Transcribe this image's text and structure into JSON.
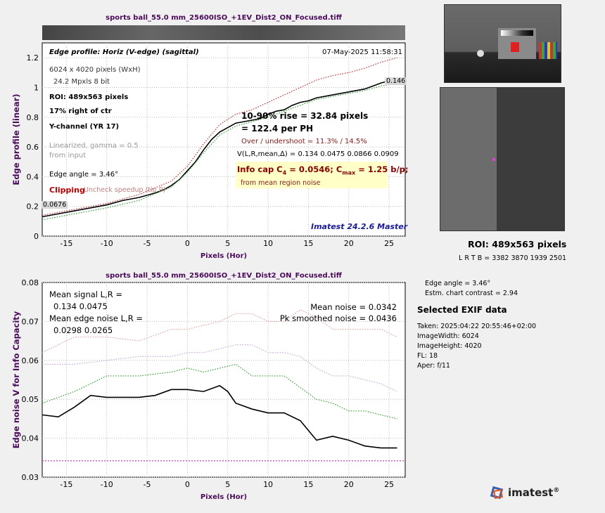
{
  "file_title": "sports ball_55.0 mm_25600ISO_+1EV_Dist2_ON_Focused.tiff",
  "top_chart": {
    "heading": "Edge profile: Horiz (V-edge) (sagittal)",
    "date": "07-May-2025 11:58:31",
    "dims": "6024 x 4020 pixels (WxH)",
    "mpxls": "24.2 Mpxls   8 bit",
    "roi": "ROI:  489x563 pixels",
    "offset": "17% right of ctr",
    "channel": "Y-channel  (YR 17)",
    "linearized": "Linearized, gamma = 0.5",
    "from_input": "from input",
    "edge_angle": "Edge angle = 3.46°",
    "clipping": "Clipping",
    "clipping_note": "Uncheck speedup (tip 9)",
    "rise": "10-90% rise = 32.84 pixels",
    "per_ph": "=  122.4 per PH",
    "overshoot": "Over / undershoot = 11.3% / 14.5%",
    "vlr": "V(L,R,mean,∆) = 0.134  0.0475  0.0866  0.0909",
    "infocap_a": "Info cap C",
    "infocap_sub4": "4",
    "infocap_b": " = 0.0546;  C",
    "infocap_submax": "max",
    "infocap_c": " = 1.25 b/p;",
    "infocap_note": "from mean region noise",
    "version": "Imatest 24.2.6 Master",
    "label_low": "0.0676",
    "label_high": "0.146"
  },
  "bottom_chart": {
    "mean_signal": "Mean signal L,R =",
    "mean_signal_vals": "0.134  0.0475",
    "mean_edge_noise": "Mean edge noise L,R =",
    "mean_edge_noise_vals": "0.0298  0.0265",
    "mean_noise": "Mean noise = 0.0342",
    "pk_noise": "Pk smoothed noise = 0.0436"
  },
  "side": {
    "roi": "ROI:  489x563 pixels",
    "lrtb": "L R  T B = 3382 3870  1939 2501",
    "edge_angle": "Edge angle = 3.46°",
    "contrast": "Estm. chart contrast = 2.94",
    "exif_title": "Selected EXIF data",
    "exif": [
      "Taken: 2025:04:22 20:55:46+02:00",
      "ImageWidth:  6024",
      "ImageHeight:  4020",
      "FL:   18",
      "Aper:  f/11"
    ],
    "logo": "imatest",
    "logo_mark": "®"
  },
  "chart_data": [
    {
      "type": "line",
      "title": "sports ball_55.0 mm_25600ISO_+1EV_Dist2_ON_Focused.tiff",
      "xlabel": "Pixels (Hor)",
      "ylabel": "Edge profile (linear)",
      "xlim": [
        -18,
        27
      ],
      "ylim": [
        0,
        1.3
      ],
      "xticks": [
        -15,
        -10,
        -5,
        0,
        5,
        10,
        15,
        20,
        25
      ],
      "yticks": [
        0,
        0.2,
        0.4,
        0.6,
        0.8,
        1,
        1.2
      ],
      "grid": true,
      "series": [
        {
          "color": "#000000",
          "style": "solid",
          "x": [
            -18,
            -16,
            -14,
            -12,
            -10,
            -8,
            -6,
            -4,
            -3,
            -2,
            -1,
            0,
            1,
            2,
            3,
            4,
            5,
            6,
            7,
            8,
            9,
            10,
            11,
            12,
            13,
            14,
            15,
            16,
            18,
            20,
            22,
            24,
            26
          ],
          "y": [
            0.13,
            0.15,
            0.17,
            0.19,
            0.21,
            0.24,
            0.26,
            0.29,
            0.31,
            0.34,
            0.38,
            0.44,
            0.5,
            0.58,
            0.65,
            0.7,
            0.73,
            0.76,
            0.77,
            0.78,
            0.79,
            0.82,
            0.84,
            0.85,
            0.88,
            0.9,
            0.91,
            0.93,
            0.95,
            0.97,
            0.99,
            1.03,
            1.06
          ]
        },
        {
          "color": "#2ca02c",
          "style": "dotted",
          "x": [
            -18,
            -14,
            -10,
            -6,
            -2,
            0,
            2,
            4,
            6,
            8,
            10,
            12,
            14,
            16,
            18,
            20,
            22,
            24,
            26
          ],
          "y": [
            0.11,
            0.15,
            0.19,
            0.24,
            0.33,
            0.43,
            0.56,
            0.68,
            0.74,
            0.77,
            0.8,
            0.84,
            0.88,
            0.92,
            0.94,
            0.96,
            0.98,
            1.01,
            1.03
          ]
        },
        {
          "color": "#d62728",
          "style": "dotted",
          "x": [
            -18,
            -14,
            -10,
            -6,
            -2,
            0,
            2,
            4,
            6,
            8,
            10,
            12,
            14,
            16,
            18,
            20,
            22,
            24,
            26
          ],
          "y": [
            0.14,
            0.18,
            0.22,
            0.28,
            0.37,
            0.47,
            0.62,
            0.75,
            0.82,
            0.85,
            0.9,
            0.95,
            1.0,
            1.05,
            1.08,
            1.1,
            1.13,
            1.17,
            1.2
          ]
        }
      ]
    },
    {
      "type": "line",
      "title": "sports ball_55.0 mm_25600ISO_+1EV_Dist2_ON_Focused.tiff",
      "xlabel": "Pixels (Hor)",
      "ylabel": "Edge noise V for Info Capacity",
      "xlim": [
        -18,
        27
      ],
      "ylim": [
        0.03,
        0.08
      ],
      "xticks": [
        -15,
        -10,
        -5,
        0,
        5,
        10,
        15,
        20,
        25
      ],
      "yticks": [
        0.03,
        0.04,
        0.05,
        0.06,
        0.07,
        0.08
      ],
      "grid": true,
      "series": [
        {
          "color": "#000000",
          "style": "solid",
          "x": [
            -18,
            -16,
            -14,
            -12,
            -10,
            -8,
            -6,
            -4,
            -2,
            0,
            2,
            4,
            5,
            6,
            8,
            10,
            12,
            14,
            15,
            16,
            18,
            20,
            22,
            24,
            26
          ],
          "y": [
            0.046,
            0.0455,
            0.048,
            0.051,
            0.0505,
            0.0505,
            0.0505,
            0.051,
            0.0525,
            0.0525,
            0.052,
            0.0535,
            0.052,
            0.049,
            0.0475,
            0.0465,
            0.0465,
            0.0445,
            0.042,
            0.0395,
            0.0405,
            0.0395,
            0.038,
            0.0375,
            0.0375
          ]
        },
        {
          "color": "#2ca02c",
          "style": "dotted",
          "x": [
            -18,
            -14,
            -10,
            -6,
            -2,
            0,
            2,
            4,
            6,
            8,
            10,
            12,
            14,
            16,
            18,
            20,
            22,
            24,
            26
          ],
          "y": [
            0.049,
            0.052,
            0.056,
            0.056,
            0.057,
            0.058,
            0.057,
            0.058,
            0.059,
            0.056,
            0.056,
            0.056,
            0.053,
            0.05,
            0.049,
            0.047,
            0.047,
            0.046,
            0.045
          ]
        },
        {
          "color": "#e9a0a0",
          "style": "dotted",
          "x": [
            -18,
            -14,
            -10,
            -6,
            -2,
            0,
            2,
            4,
            6,
            8,
            10,
            12,
            14,
            16,
            18,
            20,
            22,
            24,
            26
          ],
          "y": [
            0.062,
            0.066,
            0.066,
            0.065,
            0.068,
            0.068,
            0.069,
            0.07,
            0.072,
            0.072,
            0.07,
            0.07,
            0.073,
            0.071,
            0.068,
            0.068,
            0.068,
            0.068,
            0.066
          ]
        },
        {
          "color": "#c8a8e0",
          "style": "dotted",
          "x": [
            -18,
            -14,
            -10,
            -6,
            -2,
            0,
            2,
            4,
            6,
            8,
            10,
            12,
            14,
            16,
            18,
            20,
            22,
            24,
            26
          ],
          "y": [
            0.059,
            0.059,
            0.06,
            0.061,
            0.061,
            0.062,
            0.062,
            0.063,
            0.064,
            0.064,
            0.062,
            0.062,
            0.061,
            0.058,
            0.056,
            0.056,
            0.055,
            0.054,
            0.052
          ]
        },
        {
          "color": "#c040c0",
          "style": "dashed",
          "x": [
            -18,
            27
          ],
          "y": [
            0.0342,
            0.0342
          ]
        }
      ]
    }
  ]
}
